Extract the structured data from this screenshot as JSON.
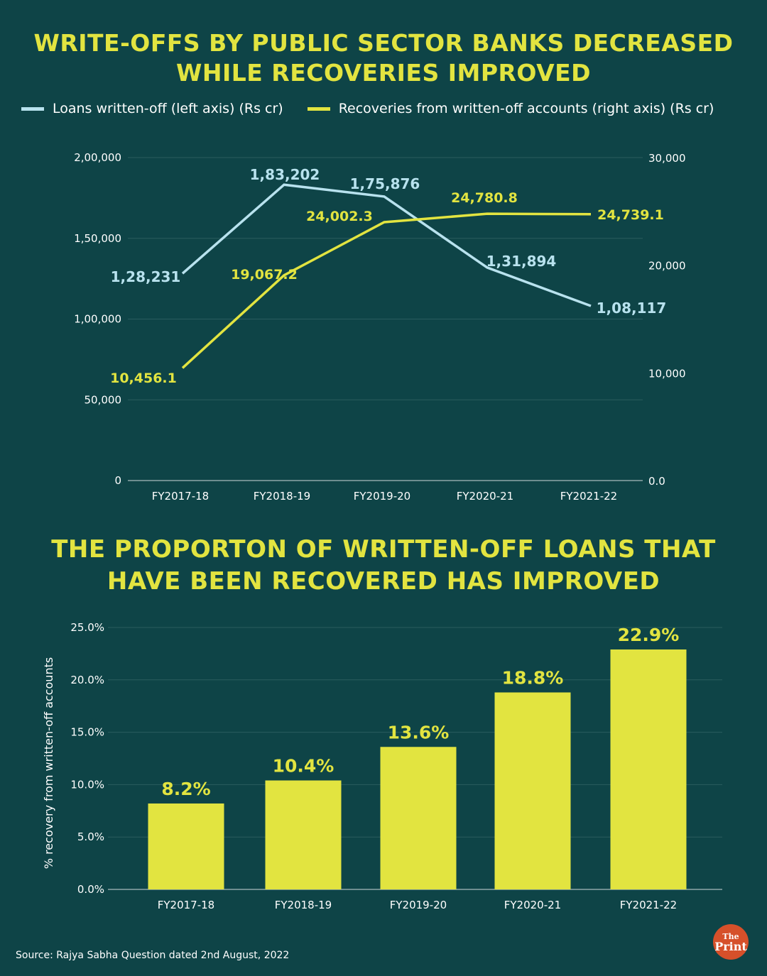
{
  "colors": {
    "background": "#0e4447",
    "loans": "#b8e2ee",
    "recoveries": "#e2e440",
    "grid": "#2a5c5e",
    "logo": "#d6502a"
  },
  "chart_data": [
    {
      "type": "line",
      "title": "WRITE-OFFS BY PUBLIC SECTOR BANKS DECREASED WHILE RECOVERIES IMPROVED",
      "categories": [
        "FY2017-18",
        "FY2018-19",
        "FY2019-20",
        "FY2020-21",
        "FY2021-22"
      ],
      "series": [
        {
          "name": "Loans written-off (left axis) (Rs cr)",
          "axis": "left",
          "values": [
            128231,
            183202,
            175876,
            131894,
            108117
          ],
          "labels": [
            "1,28,231",
            "1,83,202",
            "1,75,876",
            "1,31,894",
            "1,08,117"
          ]
        },
        {
          "name": "Recoveries from written-off accounts (right axis) (Rs cr)",
          "axis": "right",
          "values": [
            10456.1,
            19067.2,
            24002.3,
            24780.8,
            24739.1
          ],
          "labels": [
            "10,456.1",
            "19,067.2",
            "24,002.3",
            "24,780.8",
            "24,739.1"
          ]
        }
      ],
      "left_axis": {
        "ylim": [
          0,
          200000
        ],
        "ticks": [
          0,
          50000,
          100000,
          150000,
          200000
        ],
        "tick_labels": [
          "0",
          "50,000",
          "1,00,000",
          "1,50,000",
          "2,00,000"
        ]
      },
      "right_axis": {
        "ylim": [
          0,
          30000
        ],
        "ticks": [
          0,
          10000,
          20000,
          30000
        ],
        "tick_labels": [
          "0.0",
          "10,000",
          "20,000",
          "30,000"
        ]
      },
      "grid": true,
      "legend": "top"
    },
    {
      "type": "bar",
      "title": "THE PROPORTON OF WRITTEN-OFF LOANS THAT HAVE BEEN RECOVERED HAS IMPROVED",
      "categories": [
        "FY2017-18",
        "FY2018-19",
        "FY2019-20",
        "FY2020-21",
        "FY2021-22"
      ],
      "values": [
        8.2,
        10.4,
        13.6,
        18.8,
        22.9
      ],
      "labels": [
        "8.2%",
        "10.4%",
        "13.6%",
        "18.8%",
        "22.9%"
      ],
      "ylabel": "% recovery from written-off accounts",
      "ylim": [
        0,
        25
      ],
      "ticks": [
        0,
        5,
        10,
        15,
        20,
        25
      ],
      "tick_labels": [
        "0.0%",
        "5.0%",
        "10.0%",
        "15.0%",
        "20.0%",
        "25.0%"
      ],
      "grid": true
    }
  ],
  "titles": {
    "line_l1": "WRITE-OFFS BY PUBLIC SECTOR BANKS DECREASED",
    "line_l2": "WHILE RECOVERIES IMPROVED",
    "bar_l1": "THE PROPORTON OF WRITTEN-OFF LOANS THAT",
    "bar_l2": "HAVE BEEN RECOVERED HAS IMPROVED"
  },
  "source": "Source: Rajya Sabha Question dated 2nd August, 2022",
  "logo": {
    "line1": "The",
    "line2": "Print"
  }
}
